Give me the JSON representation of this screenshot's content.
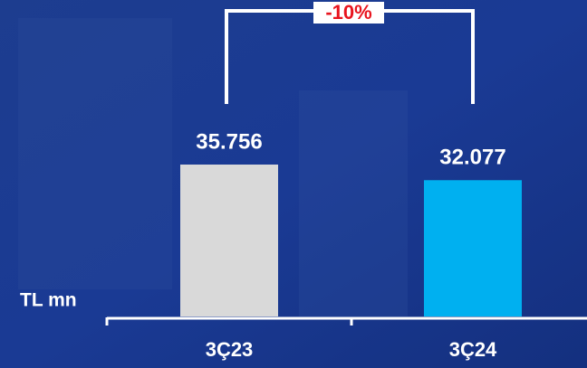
{
  "chart_data": {
    "type": "bar",
    "unit_label": "TL mn",
    "annotation": "-10%",
    "categories": [
      "3Ç23",
      "3Ç24"
    ],
    "values": [
      35756,
      32077
    ],
    "value_labels": [
      "35.756",
      "32.077"
    ],
    "colors": [
      "#d9d9d9",
      "#00b0f0"
    ]
  }
}
